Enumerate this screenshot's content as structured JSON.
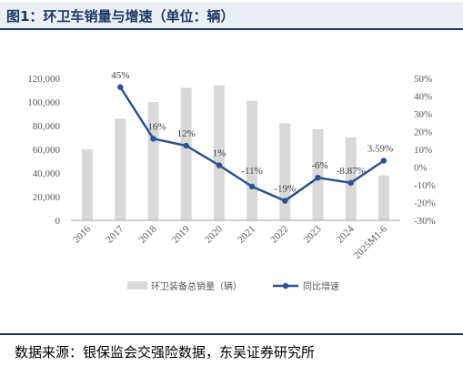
{
  "header": {
    "title": "图1：环卫车销量与增速（单位：辆）"
  },
  "footer": {
    "source": "数据来源：银保监会交强险数据，东吴证券研究所"
  },
  "colors": {
    "bar": "#d9d9d9",
    "line": "#2f528f",
    "accent": "#1f3864"
  },
  "chart_data": {
    "type": "bar",
    "title": "",
    "categories": [
      "2016",
      "2017",
      "2018",
      "2019",
      "2020",
      "2021",
      "2022",
      "2023",
      "2024",
      "2025M1-6"
    ],
    "series": [
      {
        "name": "环卫装备总销量（辆）",
        "type": "bar",
        "axis": "left",
        "values": [
          60000,
          86000,
          100000,
          112000,
          114000,
          101000,
          82000,
          77000,
          70000,
          38000
        ]
      },
      {
        "name": "同比增速",
        "type": "line",
        "axis": "right",
        "values": [
          null,
          45,
          16,
          12,
          1,
          -11,
          -19,
          -6,
          -8.87,
          3.59
        ],
        "labels": [
          "",
          "45%",
          "16%",
          "12%",
          "1%",
          "-11%",
          "-19%",
          "-6%",
          "-8.87%",
          "3.59%"
        ]
      }
    ],
    "left_axis": {
      "min": 0,
      "max": 120000,
      "step": 20000,
      "ticks": [
        "0",
        "20,000",
        "40,000",
        "60,000",
        "80,000",
        "100,000",
        "120,000"
      ]
    },
    "right_axis": {
      "min": -30,
      "max": 50,
      "step": 10,
      "ticks": [
        "-30%",
        "-20%",
        "-10%",
        "0%",
        "10%",
        "20%",
        "30%",
        "40%",
        "50%"
      ]
    },
    "legend": {
      "placement": "bottom"
    },
    "grid": false
  }
}
